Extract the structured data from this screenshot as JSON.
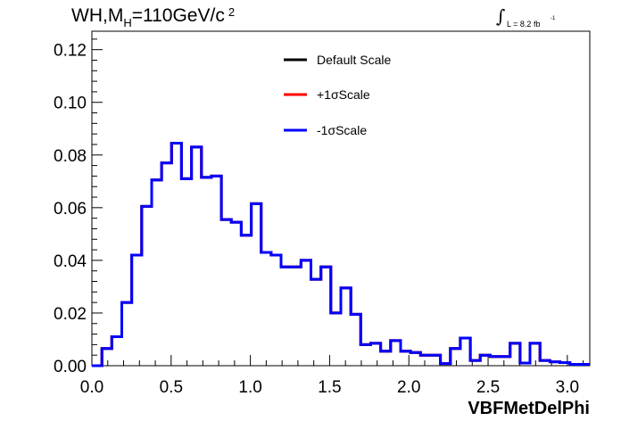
{
  "title": {
    "main": "WH,M",
    "sub": "H",
    "rest": "=110GeV/c",
    "sup": "2"
  },
  "luminosity": {
    "integral_symbol": "∫",
    "text": "L = 8.2 fb",
    "sup": "-1"
  },
  "colors": {
    "default": "#000000",
    "plus": "#ff0000",
    "minus": "#0000ff"
  },
  "chart_data": {
    "type": "line",
    "style": "step-histogram",
    "xlabel": "VBFMetDelPhi",
    "ylabel": "",
    "xlim": [
      0,
      3.1416
    ],
    "ylim": [
      0,
      0.127
    ],
    "x_ticks": [
      "0.0",
      "0.5",
      "1.0",
      "1.5",
      "2.0",
      "2.5",
      "3.0"
    ],
    "y_ticks": [
      "0.00",
      "0.02",
      "0.04",
      "0.06",
      "0.08",
      "0.10",
      "0.12"
    ],
    "legend_placement": "top-center",
    "bin_width": 0.0628,
    "x": [
      0.0,
      0.0628,
      0.1257,
      0.1885,
      0.2513,
      0.3142,
      0.377,
      0.4398,
      0.5027,
      0.5655,
      0.6283,
      0.6912,
      0.754,
      0.8168,
      0.8796,
      0.9425,
      1.0053,
      1.0681,
      1.131,
      1.1938,
      1.2566,
      1.3195,
      1.3823,
      1.4451,
      1.508,
      1.5708,
      1.6336,
      1.6965,
      1.7593,
      1.8221,
      1.885,
      1.9478,
      2.0106,
      2.0735,
      2.1363,
      2.1991,
      2.2619,
      2.3248,
      2.3876,
      2.4504,
      2.5133,
      2.5761,
      2.6389,
      2.7018,
      2.7646,
      2.8274,
      2.8903,
      2.9531,
      3.0159,
      3.0788
    ],
    "series": [
      {
        "name": "Default Scale",
        "values": [
          0.0,
          0.0065,
          0.011,
          0.024,
          0.042,
          0.0605,
          0.0705,
          0.077,
          0.0845,
          0.071,
          0.083,
          0.0715,
          0.072,
          0.0555,
          0.0545,
          0.0495,
          0.0615,
          0.043,
          0.042,
          0.0375,
          0.0375,
          0.04,
          0.0328,
          0.0375,
          0.02,
          0.0295,
          0.0195,
          0.008,
          0.0085,
          0.0055,
          0.0095,
          0.0055,
          0.005,
          0.004,
          0.004,
          0.0008,
          0.0065,
          0.0105,
          0.002,
          0.004,
          0.0035,
          0.0035,
          0.0085,
          0.001,
          0.0085,
          0.002,
          0.0015,
          0.0012,
          0.0005,
          0.0005
        ]
      },
      {
        "name": "+1σScale",
        "values": [
          0.0,
          0.0065,
          0.011,
          0.024,
          0.042,
          0.0605,
          0.0705,
          0.077,
          0.0845,
          0.071,
          0.083,
          0.0715,
          0.072,
          0.0555,
          0.0545,
          0.0495,
          0.0615,
          0.043,
          0.042,
          0.0375,
          0.0375,
          0.04,
          0.0328,
          0.0375,
          0.02,
          0.0295,
          0.0195,
          0.008,
          0.0085,
          0.0055,
          0.0095,
          0.0055,
          0.005,
          0.004,
          0.004,
          0.0008,
          0.0065,
          0.0105,
          0.002,
          0.004,
          0.0035,
          0.0035,
          0.0085,
          0.001,
          0.0085,
          0.002,
          0.0015,
          0.0012,
          0.0005,
          0.0005
        ]
      },
      {
        "name": "-1σScale",
        "values": [
          0.0,
          0.0065,
          0.011,
          0.024,
          0.042,
          0.0605,
          0.0705,
          0.077,
          0.0845,
          0.071,
          0.083,
          0.0715,
          0.072,
          0.0555,
          0.0545,
          0.0495,
          0.0615,
          0.043,
          0.042,
          0.0375,
          0.0375,
          0.04,
          0.0328,
          0.0375,
          0.02,
          0.0295,
          0.0195,
          0.008,
          0.0085,
          0.0055,
          0.0095,
          0.0055,
          0.005,
          0.004,
          0.004,
          0.0008,
          0.0065,
          0.0105,
          0.002,
          0.004,
          0.0035,
          0.0035,
          0.0085,
          0.001,
          0.0085,
          0.002,
          0.0015,
          0.0012,
          0.0005,
          0.0005
        ]
      }
    ]
  }
}
